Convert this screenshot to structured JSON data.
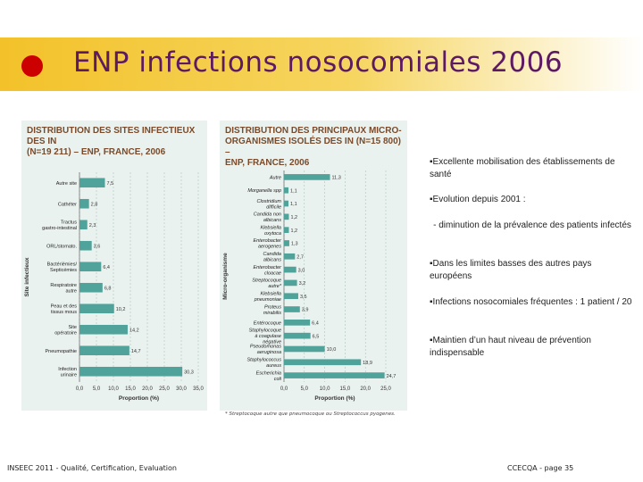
{
  "header": {
    "title": "ENP infections nosocomiales 2006"
  },
  "colors": {
    "banner": "#f3c22a",
    "dot": "#cc0000",
    "title": "#5c1a63",
    "bar": "#4fa39a",
    "panel": "#eaf2ef",
    "chart_title": "#7a4a2a"
  },
  "bullets": [
    {
      "text": "Excellente mobilisation des établissements de santé",
      "kind": "main"
    },
    {
      "text": "Evolution depuis 2001 :",
      "kind": "main"
    },
    {
      "text": "- diminution de la prévalence des patients infectés",
      "kind": "sub"
    },
    {
      "text": "Dans les limites basses des autres pays européens",
      "kind": "main"
    },
    {
      "text": "Infections nosocomiales fréquentes : 1 patient / 20",
      "kind": "main"
    },
    {
      "text": "Maintien d’un haut niveau de prévention indispensable",
      "kind": "main"
    }
  ],
  "footer": {
    "left": "INSEEC 2011 - Qualité, Certification, Evaluation",
    "right": "CCECQA - page 35"
  },
  "chart_data": [
    {
      "type": "bar",
      "orientation": "horizontal",
      "title_lines": [
        "Distribution des sites infectieux des IN",
        "(N=19 211) – ENP, France, 2006"
      ],
      "categories": [
        "Autre site",
        "Cathéter",
        "Tractus gastro-intestinal",
        "ORL/stomato.",
        "Bactériémies/ Septicémies",
        "Respiratoire autre",
        "Peau et des tissus mous",
        "Site opératoire",
        "Pneumopathie",
        "Infection urinaire"
      ],
      "values": [
        7.5,
        2.8,
        2.3,
        3.6,
        6.4,
        6.8,
        10.2,
        14.2,
        14.7,
        30.3
      ],
      "value_labels": [
        "7,5",
        "2,8",
        "2,3",
        "3,6",
        "6,4",
        "6,8",
        "10,2",
        "14,2",
        "14,7",
        "30,3"
      ],
      "xlabel": "Proportion (%)",
      "ylabel": "Site infectieux",
      "xlim": [
        0,
        35
      ],
      "xticks": [
        "0,0",
        "5,0",
        "10,0",
        "15,0",
        "20,0",
        "25,0",
        "30,0",
        "35,0"
      ],
      "grid": true
    },
    {
      "type": "bar",
      "orientation": "horizontal",
      "title_lines": [
        "Distribution des principaux micro-",
        "organismes isolés des IN (N=15 800) –",
        "ENP, France, 2006"
      ],
      "categories": [
        "Autre",
        "Morganella spp",
        "Clostridium difficile",
        "Candida non albicans",
        "Klebsiella oxytoca",
        "Enterobacter aerogenes",
        "Candida albicans",
        "Enterobacter cloacae",
        "Streptocoque autre*",
        "Klebsiella pneumoniae",
        "Proteus mirabilis",
        "Entérocoque",
        "Staphylocoque à coagulase négative",
        "Pseudomonas aeruginosa",
        "Staphylococcus aureus",
        "Escherichia coli"
      ],
      "values": [
        11.3,
        1.1,
        1.1,
        1.2,
        1.2,
        1.3,
        2.7,
        3.0,
        3.2,
        3.5,
        3.9,
        6.4,
        6.5,
        10.0,
        18.9,
        24.7
      ],
      "value_labels": [
        "11,3",
        "1,1",
        "1,1",
        "1,2",
        "1,2",
        "1,3",
        "2,7",
        "3,0",
        "3,2",
        "3,5",
        "3,9",
        "6,4",
        "6,5",
        "10,0",
        "18,9",
        "24,7"
      ],
      "xlabel": "Proportion (%)",
      "ylabel": "Micro-organisme",
      "xlim": [
        0,
        25
      ],
      "xticks": [
        "0,0",
        "5,0",
        "10,0",
        "15,0",
        "20,0",
        "25,0"
      ],
      "footnote": "* Streptocoque autre que pneumocoque ou Streptococcus pyogenes.",
      "grid": true
    }
  ]
}
